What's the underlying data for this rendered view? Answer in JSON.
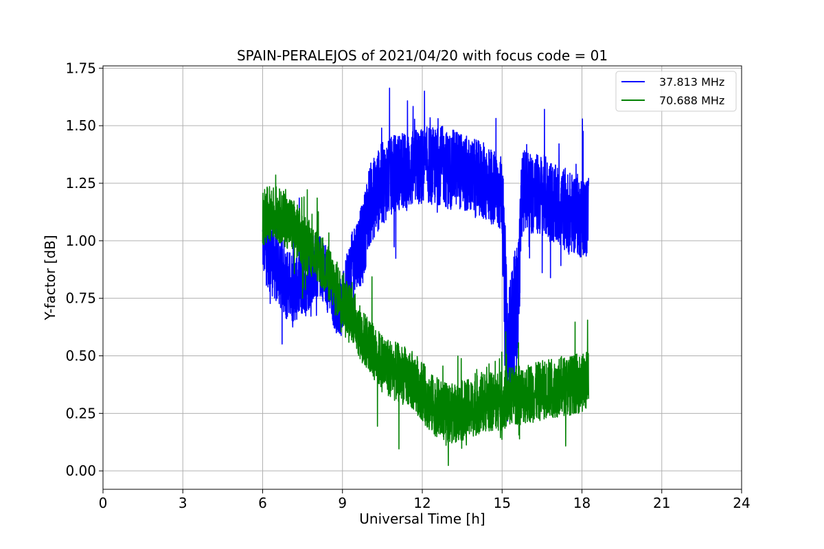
{
  "chart_data": {
    "type": "line",
    "title": "SPAIN-PERALEJOS of 2021/04/20 with focus code = 01",
    "xlabel": "Universal Time [h]",
    "ylabel": "Y-factor [dB]",
    "xlim": [
      0,
      24
    ],
    "ylim": [
      -0.08,
      1.76
    ],
    "xticks": [
      0,
      3,
      6,
      9,
      12,
      15,
      18,
      21,
      24
    ],
    "xtick_labels": [
      "0",
      "3",
      "6",
      "9",
      "12",
      "15",
      "18",
      "21",
      "24"
    ],
    "yticks": [
      0.0,
      0.25,
      0.5,
      0.75,
      1.0,
      1.25,
      1.5,
      1.75
    ],
    "ytick_labels": [
      "0.00",
      "0.25",
      "0.50",
      "0.75",
      "1.00",
      "1.25",
      "1.50",
      "1.75"
    ],
    "grid": true,
    "legend_position": "top-right",
    "series": [
      {
        "name": "37.813 MHz",
        "color": "#0000ff",
        "x": [
          6.0,
          6.25,
          6.5,
          6.75,
          7.0,
          7.25,
          7.5,
          7.75,
          8.0,
          8.25,
          8.5,
          8.75,
          9.0,
          9.25,
          9.5,
          9.75,
          10.0,
          10.25,
          10.5,
          10.75,
          11.0,
          11.25,
          11.5,
          11.75,
          12.0,
          12.25,
          12.5,
          12.75,
          13.0,
          13.25,
          13.5,
          13.75,
          14.0,
          14.25,
          14.5,
          14.75,
          15.0,
          15.1,
          15.2,
          15.3,
          15.4,
          15.5,
          15.6,
          15.75,
          16.0,
          16.25,
          16.5,
          16.75,
          17.0,
          17.25,
          17.5,
          17.75,
          18.0,
          18.25
        ],
        "y": [
          1.0,
          0.95,
          0.9,
          0.85,
          0.8,
          0.8,
          0.82,
          0.85,
          0.9,
          0.88,
          0.8,
          0.72,
          0.72,
          0.85,
          0.95,
          0.98,
          1.15,
          1.2,
          1.25,
          1.27,
          1.3,
          1.3,
          1.3,
          1.32,
          1.32,
          1.33,
          1.32,
          1.33,
          1.3,
          1.32,
          1.3,
          1.28,
          1.27,
          1.26,
          1.25,
          1.22,
          1.2,
          0.75,
          0.5,
          0.55,
          0.6,
          0.68,
          0.75,
          1.22,
          1.22,
          1.2,
          1.2,
          1.18,
          1.15,
          1.15,
          1.12,
          1.12,
          1.1,
          1.1
        ],
        "spread": [
          0.15,
          0.17,
          0.17,
          0.17,
          0.16,
          0.15,
          0.15,
          0.15,
          0.14,
          0.14,
          0.13,
          0.12,
          0.13,
          0.14,
          0.15,
          0.18,
          0.18,
          0.18,
          0.18,
          0.17,
          0.17,
          0.17,
          0.17,
          0.17,
          0.17,
          0.17,
          0.17,
          0.17,
          0.17,
          0.17,
          0.17,
          0.17,
          0.17,
          0.17,
          0.17,
          0.17,
          0.17,
          0.3,
          0.3,
          0.3,
          0.3,
          0.3,
          0.25,
          0.18,
          0.18,
          0.18,
          0.18,
          0.18,
          0.18,
          0.18,
          0.18,
          0.18,
          0.18,
          0.18
        ]
      },
      {
        "name": "70.688 MHz",
        "color": "#008000",
        "x": [
          6.0,
          6.25,
          6.5,
          6.75,
          7.0,
          7.25,
          7.5,
          7.75,
          8.0,
          8.25,
          8.5,
          8.75,
          9.0,
          9.25,
          9.5,
          9.75,
          10.0,
          10.25,
          10.5,
          10.75,
          11.0,
          11.25,
          11.5,
          11.75,
          12.0,
          12.25,
          12.5,
          12.75,
          13.0,
          13.25,
          13.5,
          13.75,
          14.0,
          14.25,
          14.5,
          14.75,
          15.0,
          15.25,
          15.5,
          15.75,
          16.0,
          16.25,
          16.5,
          16.75,
          17.0,
          17.25,
          17.5,
          17.75,
          18.0,
          18.25
        ],
        "y": [
          1.1,
          1.12,
          1.12,
          1.1,
          1.08,
          1.05,
          1.0,
          0.97,
          0.95,
          0.9,
          0.85,
          0.8,
          0.75,
          0.7,
          0.65,
          0.58,
          0.55,
          0.5,
          0.47,
          0.45,
          0.43,
          0.42,
          0.4,
          0.38,
          0.35,
          0.3,
          0.28,
          0.26,
          0.25,
          0.25,
          0.26,
          0.27,
          0.28,
          0.3,
          0.3,
          0.3,
          0.3,
          0.32,
          0.33,
          0.33,
          0.34,
          0.34,
          0.35,
          0.36,
          0.36,
          0.37,
          0.37,
          0.38,
          0.38,
          0.4
        ],
        "spread": [
          0.12,
          0.12,
          0.12,
          0.12,
          0.12,
          0.12,
          0.12,
          0.12,
          0.12,
          0.12,
          0.12,
          0.12,
          0.12,
          0.12,
          0.12,
          0.12,
          0.12,
          0.12,
          0.13,
          0.13,
          0.13,
          0.13,
          0.13,
          0.13,
          0.13,
          0.13,
          0.13,
          0.13,
          0.13,
          0.13,
          0.13,
          0.13,
          0.13,
          0.13,
          0.13,
          0.13,
          0.13,
          0.13,
          0.13,
          0.13,
          0.13,
          0.13,
          0.13,
          0.13,
          0.13,
          0.13,
          0.13,
          0.13,
          0.13,
          0.13
        ]
      }
    ]
  }
}
